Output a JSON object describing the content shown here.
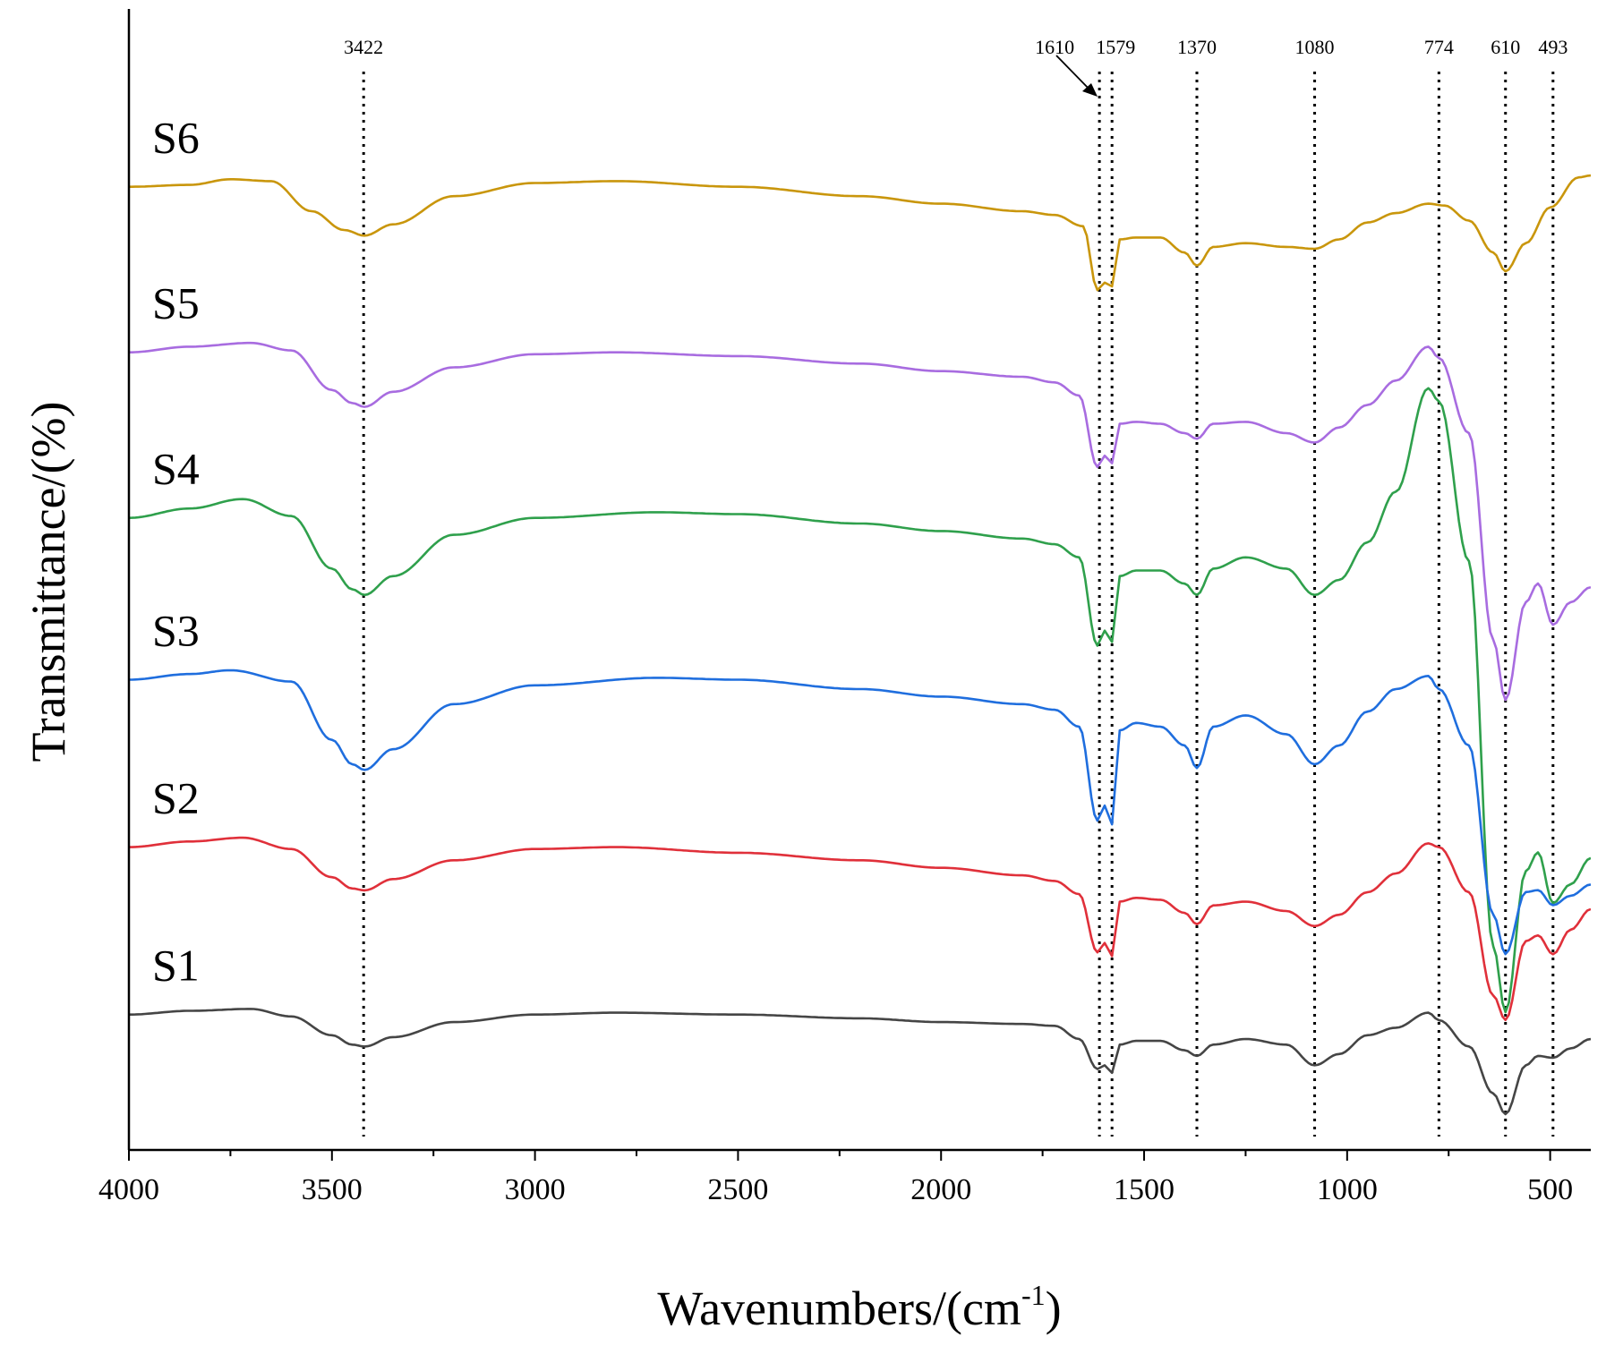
{
  "chart_data": {
    "type": "line",
    "title": "",
    "xlabel": "Wavenumbers/(cm",
    "xlabel_superscript": "-1",
    "xlabel_close": ")",
    "ylabel": "Transmittance/(%)",
    "xlim": [
      4000,
      400
    ],
    "x_ticks": [
      4000,
      3500,
      3000,
      2500,
      2000,
      1500,
      1000,
      500
    ],
    "x_tick_labels": [
      "4000",
      "3500",
      "3000",
      "2500",
      "2000",
      "1500",
      "1000",
      "500"
    ],
    "y_ticks_shown": false,
    "peak_markers": [
      {
        "label": "3422",
        "x": 3422
      },
      {
        "label": "1610",
        "x": 1610
      },
      {
        "label": "1579",
        "x": 1579
      },
      {
        "label": "1370",
        "x": 1370
      },
      {
        "label": "1080",
        "x": 1080
      },
      {
        "label": "774",
        "x": 774
      },
      {
        "label": "610",
        "x": 610
      },
      {
        "label": "493",
        "x": 493
      }
    ],
    "series": [
      {
        "name": "S6",
        "color": "#c9960c",
        "offset": 5,
        "points": [
          [
            4000,
            0.93
          ],
          [
            3850,
            0.94
          ],
          [
            3750,
            0.97
          ],
          [
            3650,
            0.96
          ],
          [
            3550,
            0.8
          ],
          [
            3470,
            0.7
          ],
          [
            3420,
            0.67
          ],
          [
            3350,
            0.73
          ],
          [
            3200,
            0.88
          ],
          [
            3000,
            0.95
          ],
          [
            2800,
            0.96
          ],
          [
            2500,
            0.93
          ],
          [
            2200,
            0.88
          ],
          [
            2000,
            0.84
          ],
          [
            1800,
            0.8
          ],
          [
            1720,
            0.78
          ],
          [
            1650,
            0.72
          ],
          [
            1615,
            0.38
          ],
          [
            1597,
            0.42
          ],
          [
            1579,
            0.4
          ],
          [
            1560,
            0.65
          ],
          [
            1520,
            0.66
          ],
          [
            1460,
            0.66
          ],
          [
            1400,
            0.58
          ],
          [
            1370,
            0.51
          ],
          [
            1330,
            0.61
          ],
          [
            1250,
            0.63
          ],
          [
            1150,
            0.61
          ],
          [
            1080,
            0.6
          ],
          [
            1020,
            0.65
          ],
          [
            950,
            0.74
          ],
          [
            880,
            0.79
          ],
          [
            800,
            0.84
          ],
          [
            760,
            0.83
          ],
          [
            700,
            0.75
          ],
          [
            640,
            0.58
          ],
          [
            610,
            0.48
          ],
          [
            560,
            0.63
          ],
          [
            500,
            0.82
          ],
          [
            430,
            0.98
          ],
          [
            400,
            0.99
          ]
        ]
      },
      {
        "name": "S5",
        "color": "#a86ce0",
        "offset": 4,
        "points": [
          [
            4000,
            0.93
          ],
          [
            3850,
            0.96
          ],
          [
            3700,
            0.98
          ],
          [
            3600,
            0.94
          ],
          [
            3500,
            0.73
          ],
          [
            3450,
            0.66
          ],
          [
            3420,
            0.64
          ],
          [
            3350,
            0.72
          ],
          [
            3200,
            0.85
          ],
          [
            3000,
            0.92
          ],
          [
            2800,
            0.93
          ],
          [
            2500,
            0.91
          ],
          [
            2200,
            0.87
          ],
          [
            2000,
            0.83
          ],
          [
            1800,
            0.8
          ],
          [
            1720,
            0.77
          ],
          [
            1660,
            0.7
          ],
          [
            1615,
            0.32
          ],
          [
            1597,
            0.38
          ],
          [
            1579,
            0.34
          ],
          [
            1560,
            0.55
          ],
          [
            1520,
            0.56
          ],
          [
            1460,
            0.55
          ],
          [
            1400,
            0.5
          ],
          [
            1370,
            0.47
          ],
          [
            1330,
            0.55
          ],
          [
            1250,
            0.56
          ],
          [
            1150,
            0.5
          ],
          [
            1080,
            0.45
          ],
          [
            1020,
            0.53
          ],
          [
            950,
            0.65
          ],
          [
            880,
            0.78
          ],
          [
            800,
            0.96
          ],
          [
            774,
            0.9
          ],
          [
            700,
            0.5
          ],
          [
            640,
            -0.6
          ],
          [
            610,
            -0.92
          ],
          [
            560,
            -0.4
          ],
          [
            530,
            -0.3
          ],
          [
            493,
            -0.52
          ],
          [
            450,
            -0.4
          ],
          [
            400,
            -0.32
          ]
        ]
      },
      {
        "name": "S4",
        "color": "#2fa04c",
        "offset": 3,
        "points": [
          [
            4000,
            0.93
          ],
          [
            3850,
            0.98
          ],
          [
            3720,
            1.03
          ],
          [
            3600,
            0.94
          ],
          [
            3500,
            0.66
          ],
          [
            3450,
            0.55
          ],
          [
            3420,
            0.52
          ],
          [
            3350,
            0.62
          ],
          [
            3200,
            0.84
          ],
          [
            3000,
            0.93
          ],
          [
            2700,
            0.96
          ],
          [
            2500,
            0.95
          ],
          [
            2200,
            0.9
          ],
          [
            2000,
            0.86
          ],
          [
            1800,
            0.82
          ],
          [
            1720,
            0.79
          ],
          [
            1660,
            0.72
          ],
          [
            1615,
            0.25
          ],
          [
            1597,
            0.33
          ],
          [
            1579,
            0.27
          ],
          [
            1560,
            0.62
          ],
          [
            1520,
            0.65
          ],
          [
            1460,
            0.65
          ],
          [
            1400,
            0.58
          ],
          [
            1370,
            0.52
          ],
          [
            1330,
            0.66
          ],
          [
            1250,
            0.72
          ],
          [
            1150,
            0.66
          ],
          [
            1080,
            0.52
          ],
          [
            1020,
            0.6
          ],
          [
            950,
            0.8
          ],
          [
            880,
            1.07
          ],
          [
            800,
            1.62
          ],
          [
            774,
            1.55
          ],
          [
            700,
            0.7
          ],
          [
            640,
            -1.35
          ],
          [
            610,
            -1.7
          ],
          [
            560,
            -0.95
          ],
          [
            530,
            -0.85
          ],
          [
            493,
            -1.12
          ],
          [
            450,
            -1.02
          ],
          [
            400,
            -0.88
          ]
        ]
      },
      {
        "name": "S3",
        "color": "#1f6ede",
        "offset": 2,
        "points": [
          [
            4000,
            0.95
          ],
          [
            3850,
            0.98
          ],
          [
            3750,
            1.0
          ],
          [
            3600,
            0.94
          ],
          [
            3500,
            0.63
          ],
          [
            3450,
            0.5
          ],
          [
            3420,
            0.47
          ],
          [
            3350,
            0.58
          ],
          [
            3200,
            0.82
          ],
          [
            3000,
            0.92
          ],
          [
            2700,
            0.96
          ],
          [
            2500,
            0.95
          ],
          [
            2200,
            0.9
          ],
          [
            2000,
            0.86
          ],
          [
            1800,
            0.82
          ],
          [
            1720,
            0.79
          ],
          [
            1660,
            0.7
          ],
          [
            1615,
            0.2
          ],
          [
            1597,
            0.28
          ],
          [
            1579,
            0.18
          ],
          [
            1560,
            0.68
          ],
          [
            1520,
            0.72
          ],
          [
            1460,
            0.7
          ],
          [
            1400,
            0.6
          ],
          [
            1370,
            0.48
          ],
          [
            1330,
            0.7
          ],
          [
            1250,
            0.76
          ],
          [
            1150,
            0.66
          ],
          [
            1080,
            0.5
          ],
          [
            1020,
            0.6
          ],
          [
            950,
            0.78
          ],
          [
            880,
            0.9
          ],
          [
            800,
            0.97
          ],
          [
            774,
            0.9
          ],
          [
            700,
            0.6
          ],
          [
            640,
            -0.3
          ],
          [
            610,
            -0.51
          ],
          [
            560,
            -0.18
          ],
          [
            530,
            -0.17
          ],
          [
            493,
            -0.25
          ],
          [
            450,
            -0.2
          ],
          [
            400,
            -0.14
          ]
        ]
      },
      {
        "name": "S2",
        "color": "#e0303a",
        "offset": 1,
        "points": [
          [
            4000,
            0.94
          ],
          [
            3850,
            0.97
          ],
          [
            3720,
            0.99
          ],
          [
            3600,
            0.93
          ],
          [
            3500,
            0.78
          ],
          [
            3450,
            0.72
          ],
          [
            3420,
            0.71
          ],
          [
            3350,
            0.77
          ],
          [
            3200,
            0.87
          ],
          [
            3000,
            0.93
          ],
          [
            2800,
            0.94
          ],
          [
            2500,
            0.91
          ],
          [
            2200,
            0.87
          ],
          [
            2000,
            0.83
          ],
          [
            1800,
            0.79
          ],
          [
            1720,
            0.76
          ],
          [
            1660,
            0.69
          ],
          [
            1615,
            0.38
          ],
          [
            1597,
            0.43
          ],
          [
            1579,
            0.36
          ],
          [
            1560,
            0.65
          ],
          [
            1520,
            0.67
          ],
          [
            1460,
            0.66
          ],
          [
            1400,
            0.59
          ],
          [
            1370,
            0.53
          ],
          [
            1330,
            0.63
          ],
          [
            1250,
            0.65
          ],
          [
            1150,
            0.6
          ],
          [
            1080,
            0.52
          ],
          [
            1020,
            0.58
          ],
          [
            950,
            0.7
          ],
          [
            880,
            0.8
          ],
          [
            800,
            0.96
          ],
          [
            774,
            0.94
          ],
          [
            700,
            0.7
          ],
          [
            640,
            0.15
          ],
          [
            610,
            0.02
          ],
          [
            560,
            0.44
          ],
          [
            530,
            0.47
          ],
          [
            493,
            0.37
          ],
          [
            450,
            0.5
          ],
          [
            400,
            0.61
          ]
        ]
      },
      {
        "name": "S1",
        "color": "#454545",
        "offset": 0,
        "points": [
          [
            4000,
            0.93
          ],
          [
            3850,
            0.95
          ],
          [
            3700,
            0.96
          ],
          [
            3600,
            0.92
          ],
          [
            3500,
            0.82
          ],
          [
            3450,
            0.77
          ],
          [
            3420,
            0.76
          ],
          [
            3350,
            0.81
          ],
          [
            3200,
            0.89
          ],
          [
            3000,
            0.93
          ],
          [
            2800,
            0.94
          ],
          [
            2500,
            0.93
          ],
          [
            2200,
            0.91
          ],
          [
            2000,
            0.89
          ],
          [
            1800,
            0.88
          ],
          [
            1720,
            0.87
          ],
          [
            1660,
            0.8
          ],
          [
            1615,
            0.64
          ],
          [
            1597,
            0.66
          ],
          [
            1579,
            0.62
          ],
          [
            1560,
            0.77
          ],
          [
            1520,
            0.79
          ],
          [
            1460,
            0.79
          ],
          [
            1400,
            0.74
          ],
          [
            1370,
            0.71
          ],
          [
            1330,
            0.77
          ],
          [
            1250,
            0.8
          ],
          [
            1150,
            0.77
          ],
          [
            1080,
            0.66
          ],
          [
            1020,
            0.72
          ],
          [
            950,
            0.82
          ],
          [
            880,
            0.86
          ],
          [
            800,
            0.94
          ],
          [
            774,
            0.9
          ],
          [
            700,
            0.76
          ],
          [
            640,
            0.51
          ],
          [
            610,
            0.4
          ],
          [
            560,
            0.66
          ],
          [
            530,
            0.71
          ],
          [
            493,
            0.7
          ],
          [
            450,
            0.75
          ],
          [
            400,
            0.8
          ]
        ]
      }
    ]
  }
}
